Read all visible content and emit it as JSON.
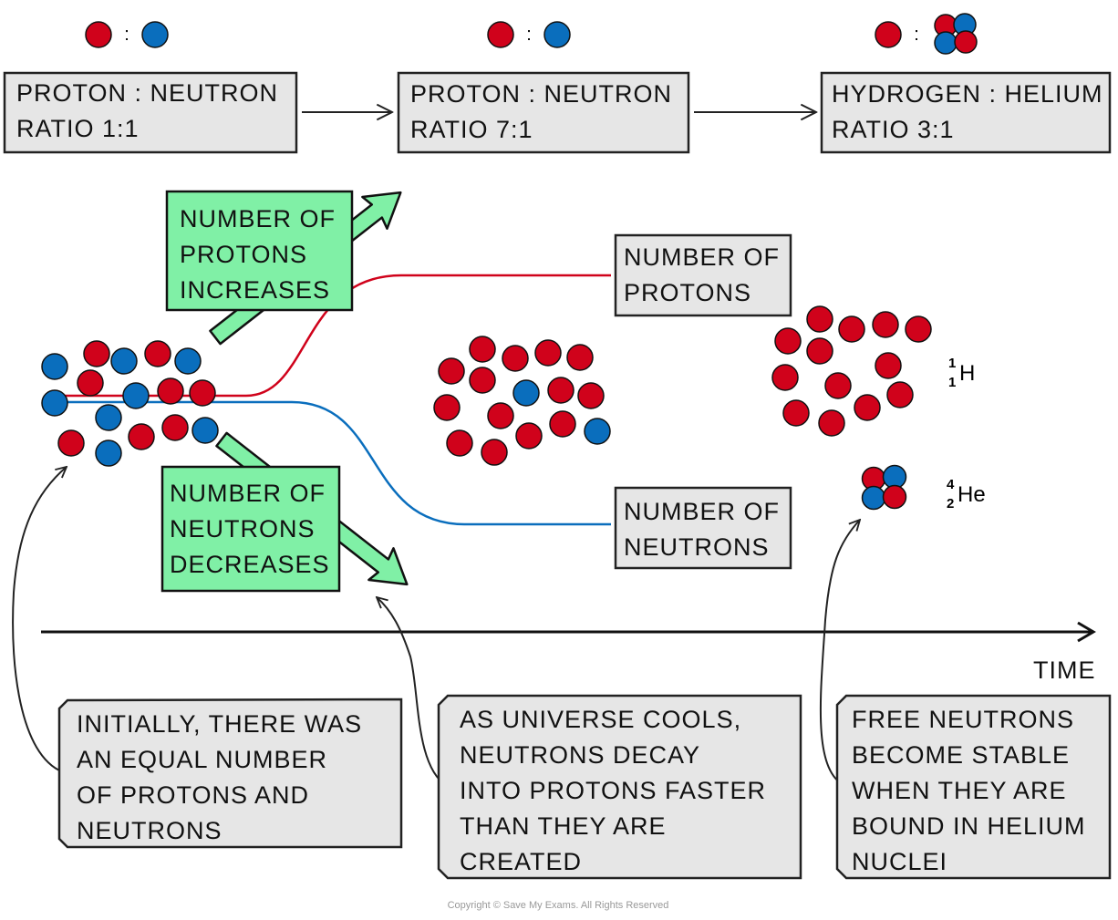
{
  "colors": {
    "proton": "#d0021b",
    "neutron": "#0a6ebd",
    "highlight_box": "#80f0a6",
    "label_box": "#e6e6e6",
    "proton_line": "#d0021b",
    "neutron_line": "#0a6ebd"
  },
  "top": {
    "colon": ":",
    "stages": [
      {
        "lines": [
          "PROTON : NEUTRON",
          "RATIO 1:1"
        ]
      },
      {
        "lines": [
          "PROTON : NEUTRON",
          "RATIO 7:1"
        ]
      },
      {
        "lines": [
          "HYDROGEN : HELIUM",
          "RATIO 3:1"
        ]
      }
    ]
  },
  "particles": {
    "initial": {
      "protons": 8,
      "neutrons": 8
    },
    "after_cooling": {
      "protons": 14,
      "neutrons": 2
    },
    "hydrogen": {
      "protons": 13
    },
    "helium": {
      "protons": 2,
      "neutrons": 2
    }
  },
  "callouts": {
    "protons_increase": [
      "NUMBER OF",
      "PROTONS",
      "INCREASES"
    ],
    "neutrons_decrease": [
      "NUMBER OF",
      "NEUTRONS",
      "DECREASES"
    ],
    "protons_label": [
      "NUMBER OF",
      "PROTONS"
    ],
    "neutrons_label": [
      "NUMBER OF",
      "NEUTRONS"
    ]
  },
  "isotopes": {
    "hydrogen": {
      "mass": "1",
      "atomic": "1",
      "symbol": "H"
    },
    "helium": {
      "mass": "4",
      "atomic": "2",
      "symbol": "He"
    }
  },
  "axis": {
    "label": "TIME"
  },
  "notes": [
    [
      "INITIALLY, THERE WAS",
      "AN EQUAL NUMBER",
      "OF PROTONS AND",
      "NEUTRONS"
    ],
    [
      "AS UNIVERSE COOLS,",
      "NEUTRONS DECAY",
      "INTO PROTONS FASTER",
      "THAN THEY ARE",
      "CREATED"
    ],
    [
      "FREE NEUTRONS",
      "BECOME STABLE",
      "WHEN THEY ARE",
      "BOUND IN HELIUM",
      "NUCLEI"
    ]
  ],
  "copyright": "Copyright © Save My Exams. All Rights Reserved"
}
